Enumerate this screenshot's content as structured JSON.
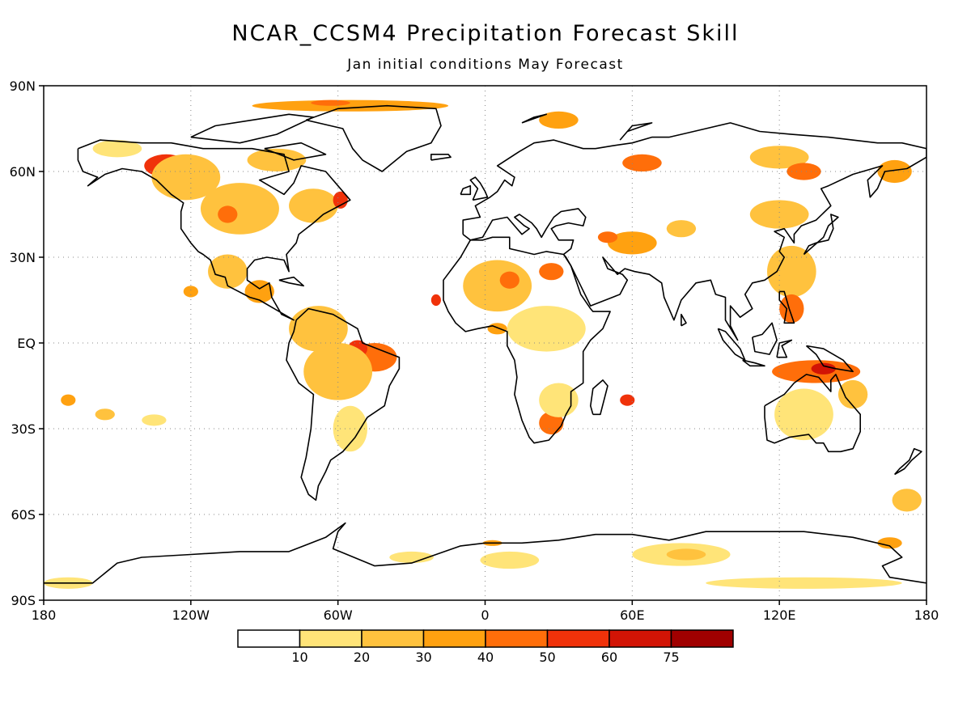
{
  "title": "NCAR_CCSM4 Precipitation Forecast Skill",
  "subtitle": "Jan initial conditions   May Forecast",
  "lat_labels": [
    "90N",
    "60N",
    "30N",
    "EQ",
    "30S",
    "60S",
    "90S"
  ],
  "lon_labels": [
    "180",
    "120W",
    "60W",
    "0",
    "60E",
    "120E",
    "180"
  ],
  "colorbar": {
    "labels": [
      "10",
      "20",
      "30",
      "40",
      "50",
      "60",
      "75"
    ],
    "colors": [
      "#ffffff",
      "#ffe478",
      "#ffc23e",
      "#ffa110",
      "#ff6e0a",
      "#f0320a",
      "#d21405",
      "#a00000"
    ]
  },
  "skill_blobs": [
    {
      "lon": -130,
      "lat": 62,
      "rx": 9,
      "ry": 4,
      "level": 5
    },
    {
      "lon": -122,
      "lat": 58,
      "rx": 14,
      "ry": 8,
      "level": 2
    },
    {
      "lon": -100,
      "lat": 47,
      "rx": 16,
      "ry": 9,
      "level": 2
    },
    {
      "lon": -105,
      "lat": 45,
      "rx": 4,
      "ry": 3,
      "level": 4
    },
    {
      "lon": -70,
      "lat": 48,
      "rx": 10,
      "ry": 6,
      "level": 2
    },
    {
      "lon": -59,
      "lat": 50,
      "rx": 3,
      "ry": 3,
      "level": 5
    },
    {
      "lon": -85,
      "lat": 64,
      "rx": 12,
      "ry": 4,
      "level": 2
    },
    {
      "lon": -55,
      "lat": 83,
      "rx": 40,
      "ry": 2,
      "level": 3
    },
    {
      "lon": -63,
      "lat": 84,
      "rx": 8,
      "ry": 1,
      "level": 4
    },
    {
      "lon": -150,
      "lat": 68,
      "rx": 10,
      "ry": 3,
      "level": 1
    },
    {
      "lon": -105,
      "lat": 25,
      "rx": 8,
      "ry": 6,
      "level": 2
    },
    {
      "lon": -92,
      "lat": 18,
      "rx": 6,
      "ry": 4,
      "level": 3
    },
    {
      "lon": -68,
      "lat": 5,
      "rx": 12,
      "ry": 8,
      "level": 2
    },
    {
      "lon": -45,
      "lat": -5,
      "rx": 9,
      "ry": 5,
      "level": 4
    },
    {
      "lon": -52,
      "lat": -2,
      "rx": 4,
      "ry": 3,
      "level": 5
    },
    {
      "lon": -60,
      "lat": -10,
      "rx": 14,
      "ry": 10,
      "level": 2
    },
    {
      "lon": -55,
      "lat": -30,
      "rx": 7,
      "ry": 8,
      "level": 1
    },
    {
      "lon": -120,
      "lat": 18,
      "rx": 3,
      "ry": 2,
      "level": 3
    },
    {
      "lon": -170,
      "lat": -20,
      "rx": 3,
      "ry": 2,
      "level": 3
    },
    {
      "lon": -155,
      "lat": -25,
      "rx": 4,
      "ry": 2,
      "level": 2
    },
    {
      "lon": -135,
      "lat": -27,
      "rx": 5,
      "ry": 2,
      "level": 1
    },
    {
      "lon": -20,
      "lat": 15,
      "rx": 2,
      "ry": 2,
      "level": 5
    },
    {
      "lon": 5,
      "lat": 20,
      "rx": 14,
      "ry": 9,
      "level": 2
    },
    {
      "lon": 10,
      "lat": 22,
      "rx": 4,
      "ry": 3,
      "level": 4
    },
    {
      "lon": 27,
      "lat": 25,
      "rx": 5,
      "ry": 3,
      "level": 4
    },
    {
      "lon": 25,
      "lat": 5,
      "rx": 16,
      "ry": 8,
      "level": 1
    },
    {
      "lon": 5,
      "lat": 5,
      "rx": 4,
      "ry": 2,
      "level": 3
    },
    {
      "lon": 27,
      "lat": -28,
      "rx": 5,
      "ry": 4,
      "level": 4
    },
    {
      "lon": 30,
      "lat": -20,
      "rx": 8,
      "ry": 6,
      "level": 1
    },
    {
      "lon": 60,
      "lat": 35,
      "rx": 10,
      "ry": 4,
      "level": 3
    },
    {
      "lon": 50,
      "lat": 37,
      "rx": 4,
      "ry": 2,
      "level": 4
    },
    {
      "lon": 30,
      "lat": 78,
      "rx": 8,
      "ry": 3,
      "level": 3
    },
    {
      "lon": 64,
      "lat": 63,
      "rx": 8,
      "ry": 3,
      "level": 4
    },
    {
      "lon": 80,
      "lat": 40,
      "rx": 6,
      "ry": 3,
      "level": 2
    },
    {
      "lon": 120,
      "lat": 65,
      "rx": 12,
      "ry": 4,
      "level": 2
    },
    {
      "lon": 130,
      "lat": 60,
      "rx": 7,
      "ry": 3,
      "level": 4
    },
    {
      "lon": 120,
      "lat": 45,
      "rx": 12,
      "ry": 5,
      "level": 2
    },
    {
      "lon": 125,
      "lat": 25,
      "rx": 10,
      "ry": 9,
      "level": 2
    },
    {
      "lon": 125,
      "lat": 12,
      "rx": 5,
      "ry": 5,
      "level": 4
    },
    {
      "lon": 135,
      "lat": -10,
      "rx": 18,
      "ry": 4,
      "level": 4
    },
    {
      "lon": 138,
      "lat": -9,
      "rx": 5,
      "ry": 2,
      "level": 6
    },
    {
      "lon": 130,
      "lat": -25,
      "rx": 12,
      "ry": 9,
      "level": 1
    },
    {
      "lon": 150,
      "lat": -18,
      "rx": 6,
      "ry": 5,
      "level": 2
    },
    {
      "lon": 167,
      "lat": 60,
      "rx": 7,
      "ry": 4,
      "level": 3
    },
    {
      "lon": 172,
      "lat": -55,
      "rx": 6,
      "ry": 4,
      "level": 2
    },
    {
      "lon": 58,
      "lat": -20,
      "rx": 3,
      "ry": 2,
      "level": 5
    },
    {
      "lon": -30,
      "lat": -75,
      "rx": 9,
      "ry": 2,
      "level": 1
    },
    {
      "lon": 10,
      "lat": -76,
      "rx": 12,
      "ry": 3,
      "level": 1
    },
    {
      "lon": 80,
      "lat": -74,
      "rx": 20,
      "ry": 4,
      "level": 1
    },
    {
      "lon": 82,
      "lat": -74,
      "rx": 8,
      "ry": 2,
      "level": 2
    },
    {
      "lon": 130,
      "lat": -84,
      "rx": 40,
      "ry": 2,
      "level": 1
    },
    {
      "lon": 3,
      "lat": -70,
      "rx": 4,
      "ry": 1,
      "level": 3
    },
    {
      "lon": 165,
      "lat": -70,
      "rx": 5,
      "ry": 2,
      "level": 3
    },
    {
      "lon": -170,
      "lat": -84,
      "rx": 10,
      "ry": 2,
      "level": 1
    }
  ]
}
